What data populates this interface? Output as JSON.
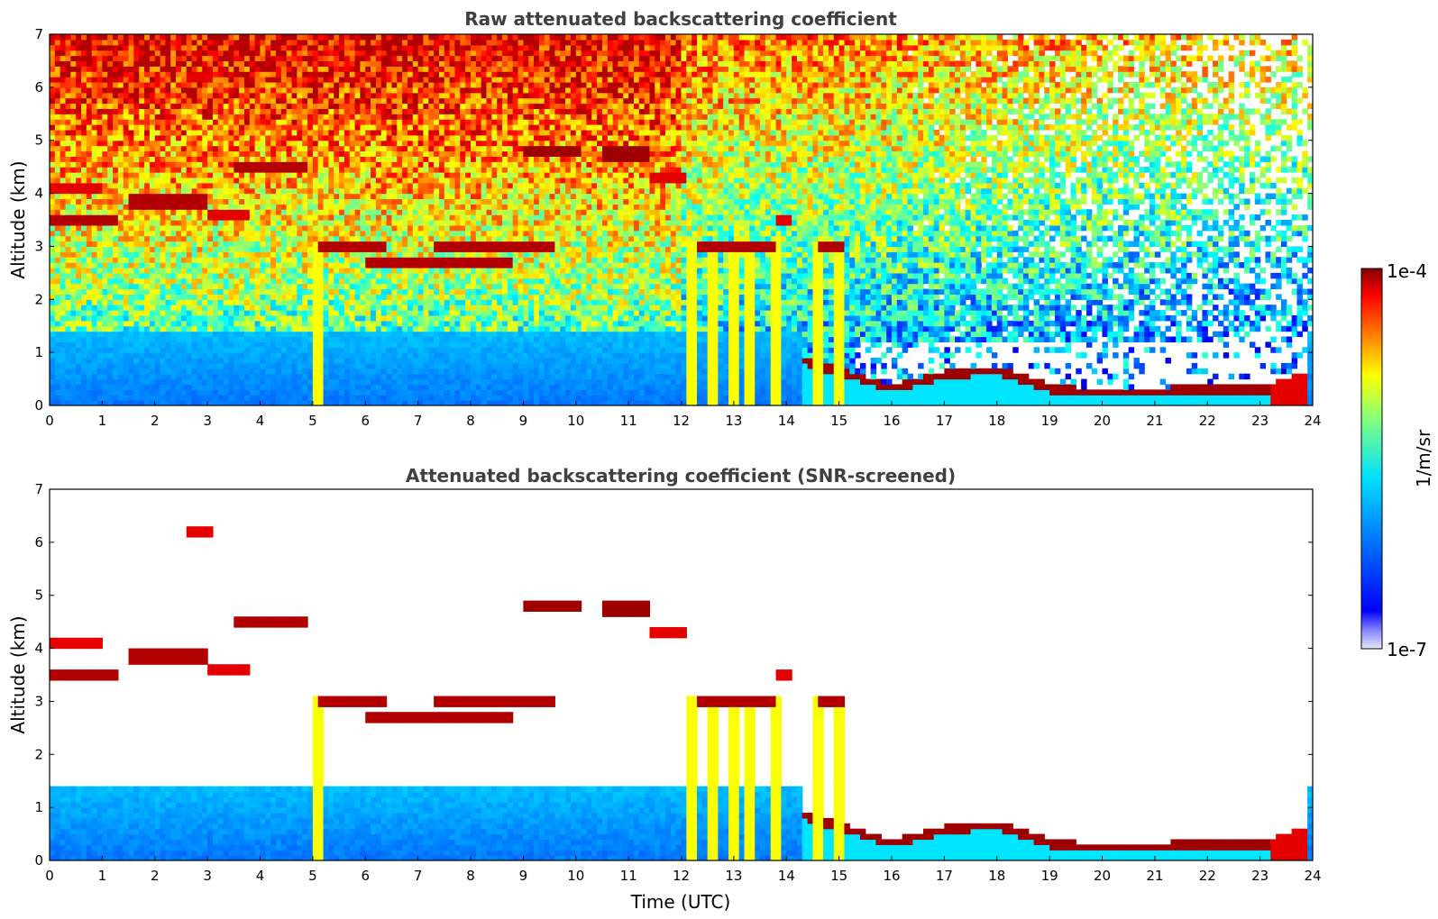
{
  "chart_data": [
    {
      "type": "heatmap",
      "title": "Raw attenuated backscattering coefficient",
      "xlabel": "",
      "ylabel": "Altitude (km)",
      "xlim": [
        0,
        24
      ],
      "ylim": [
        0,
        7
      ],
      "x_ticks": [
        "0",
        "1",
        "2",
        "3",
        "4",
        "5",
        "6",
        "7",
        "8",
        "9",
        "10",
        "11",
        "12",
        "13",
        "14",
        "15",
        "16",
        "17",
        "18",
        "19",
        "20",
        "21",
        "22",
        "23",
        "24"
      ],
      "y_ticks": [
        "0",
        "1",
        "2",
        "3",
        "4",
        "5",
        "6",
        "7"
      ],
      "grid": false,
      "colormap": "jet",
      "cloud_layers": [
        {
          "t0": 0.0,
          "t1": 1.3,
          "alt": 3.5,
          "level": 0.95
        },
        {
          "t0": 0.0,
          "t1": 1.0,
          "alt": 4.1,
          "level": 0.9
        },
        {
          "t0": 1.5,
          "t1": 3.0,
          "alt": 3.85,
          "level": 0.95
        },
        {
          "t0": 3.0,
          "t1": 3.8,
          "alt": 3.6,
          "level": 0.9
        },
        {
          "t0": 3.5,
          "t1": 4.9,
          "alt": 4.5,
          "level": 0.95
        },
        {
          "t0": 2.6,
          "t1": 3.1,
          "alt": 6.2,
          "level": 0.9
        },
        {
          "t0": 5.1,
          "t1": 6.4,
          "alt": 3.0,
          "level": 0.95
        },
        {
          "t0": 6.0,
          "t1": 8.8,
          "alt": 2.7,
          "level": 0.95
        },
        {
          "t0": 7.3,
          "t1": 9.6,
          "alt": 3.0,
          "level": 0.95
        },
        {
          "t0": 9.0,
          "t1": 10.1,
          "alt": 4.8,
          "level": 0.97
        },
        {
          "t0": 10.5,
          "t1": 11.4,
          "alt": 4.75,
          "level": 0.97
        },
        {
          "t0": 11.4,
          "t1": 12.1,
          "alt": 4.3,
          "level": 0.9
        },
        {
          "t0": 12.3,
          "t1": 13.8,
          "alt": 3.0,
          "level": 0.95
        },
        {
          "t0": 13.8,
          "t1": 14.1,
          "alt": 3.5,
          "level": 0.9
        },
        {
          "t0": 14.6,
          "t1": 15.1,
          "alt": 3.0,
          "level": 0.95
        }
      ],
      "boundary_layer_top": [
        {
          "t": 14.3,
          "alt": 0.9
        },
        {
          "t": 15.2,
          "alt": 0.6
        },
        {
          "t": 16.0,
          "alt": 0.35
        },
        {
          "t": 17.0,
          "alt": 0.6
        },
        {
          "t": 18.0,
          "alt": 0.7
        },
        {
          "t": 19.0,
          "alt": 0.35
        },
        {
          "t": 20.0,
          "alt": 0.25
        },
        {
          "t": 21.0,
          "alt": 0.28
        },
        {
          "t": 22.0,
          "alt": 0.35
        },
        {
          "t": 23.0,
          "alt": 0.3
        },
        {
          "t": 23.8,
          "alt": 0.55
        }
      ],
      "precip_streaks": [
        5.1,
        12.2,
        12.6,
        13.0,
        13.3,
        13.8,
        14.6,
        15.0
      ]
    },
    {
      "type": "heatmap",
      "title": "Attenuated backscattering coefficient (SNR-screened)",
      "xlabel": "Time (UTC)",
      "ylabel": "Altitude (km)",
      "xlim": [
        0,
        24
      ],
      "ylim": [
        0,
        7
      ],
      "x_ticks": [
        "0",
        "1",
        "2",
        "3",
        "4",
        "5",
        "6",
        "7",
        "8",
        "9",
        "10",
        "11",
        "12",
        "13",
        "14",
        "15",
        "16",
        "17",
        "18",
        "19",
        "20",
        "21",
        "22",
        "23",
        "24"
      ],
      "y_ticks": [
        "0",
        "1",
        "2",
        "3",
        "4",
        "5",
        "6",
        "7"
      ],
      "grid": false,
      "colormap": "jet"
    }
  ],
  "colorbar": {
    "label": "1/m/sr",
    "max_label": "1e-4",
    "min_label": "1e-7",
    "scale": "log",
    "range": [
      1e-07,
      0.0001
    ]
  },
  "colors": {
    "title": "#404040",
    "colormap_stops": [
      "#00007f",
      "#0000ff",
      "#007fff",
      "#00ffff",
      "#7fff7f",
      "#ffff00",
      "#ff7f00",
      "#ff0000",
      "#7f0000"
    ]
  }
}
